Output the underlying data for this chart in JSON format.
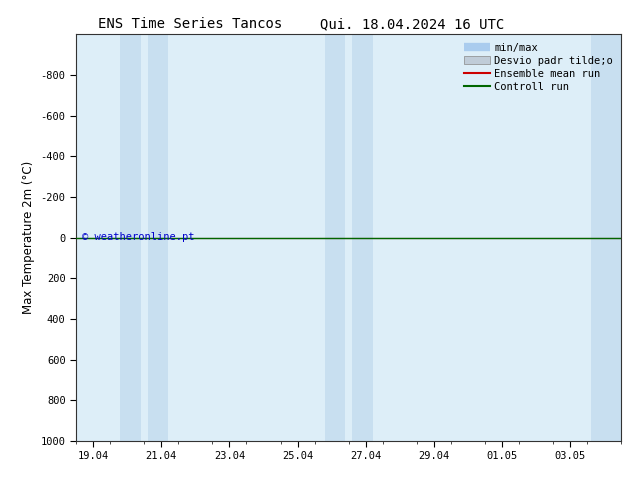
{
  "title1": "ENS Time Series Tancos",
  "title2": "Qui. 18.04.2024 16 UTC",
  "ylabel": "Max Temperature 2m (°C)",
  "background_color": "#ffffff",
  "plot_bg_color": "#ddeeff",
  "ylim_top": -1000,
  "ylim_bottom": 1000,
  "yticks": [
    -800,
    -600,
    -400,
    -200,
    0,
    200,
    400,
    600,
    800,
    1000
  ],
  "x_dates": [
    "19.04",
    "21.04",
    "23.04",
    "25.04",
    "27.04",
    "29.04",
    "01.05",
    "03.05"
  ],
  "x_numeric": [
    0,
    2,
    4,
    6,
    8,
    10,
    12,
    14
  ],
  "xlim": [
    -0.5,
    15.5
  ],
  "blue_bands": [
    [
      0.8,
      1.4
    ],
    [
      1.6,
      2.2
    ],
    [
      6.8,
      7.4
    ],
    [
      7.6,
      8.2
    ],
    [
      14.6,
      15.5
    ]
  ],
  "blue_band_color": "#ccddf0",
  "plot_bg_alpha": 0.3,
  "green_line_color": "#006600",
  "red_line_color": "#cc0000",
  "watermark": "© weatheronline.pt",
  "watermark_color": "#0000cc",
  "title_fontsize": 10,
  "tick_fontsize": 7.5,
  "ylabel_fontsize": 8.5,
  "legend_fontsize": 7.5
}
